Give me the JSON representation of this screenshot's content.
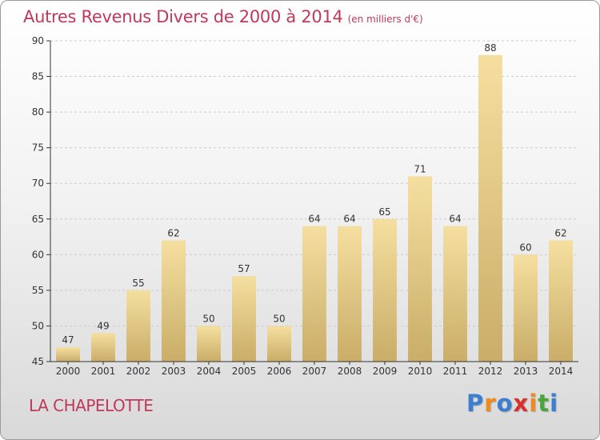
{
  "header": {
    "title": "Autres Revenus Divers de 2000 à 2014",
    "subtitle": "(en milliers d'€)"
  },
  "footer": {
    "place": "LA CHAPELOTTE",
    "logo_text": "Proxiti",
    "logo_colors": [
      "#3a7fd0",
      "#f08a1c",
      "#3a7fd0",
      "#d9302c",
      "#f08a1c",
      "#4aa53a",
      "#3a7fd0"
    ]
  },
  "colors": {
    "title": "#c0395a",
    "bar_light": "#f5dfa0",
    "bar_dark": "#c9ad68",
    "grid": "#cccccc",
    "axis": "#333333"
  },
  "chart_data": {
    "type": "bar",
    "title": "Autres Revenus Divers de 2000 à 2014",
    "subtitle": "(en milliers d'€)",
    "xlabel": "",
    "ylabel": "",
    "categories": [
      "2000",
      "2001",
      "2002",
      "2003",
      "2004",
      "2005",
      "2006",
      "2007",
      "2008",
      "2009",
      "2010",
      "2011",
      "2012",
      "2013",
      "2014"
    ],
    "values": [
      47,
      49,
      55,
      62,
      50,
      57,
      50,
      64,
      64,
      65,
      71,
      64,
      88,
      60,
      62
    ],
    "ylim": [
      45,
      90
    ],
    "yticks": [
      45,
      50,
      55,
      60,
      65,
      70,
      75,
      80,
      85,
      90
    ],
    "grid": true,
    "legend": "none"
  }
}
